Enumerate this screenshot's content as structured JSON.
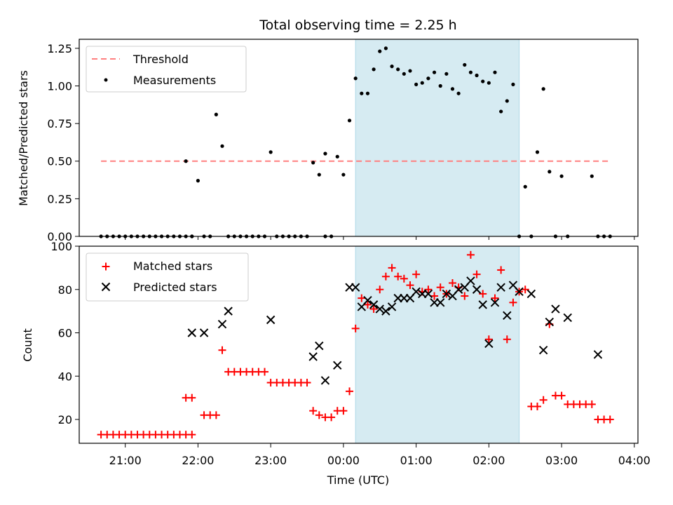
{
  "chart_data": [
    {
      "type": "scatter",
      "title": "Total observing time = 2.25 h",
      "xlabel": "",
      "ylabel": "Matched/Predicted stars",
      "xlim": [
        "20:22",
        "04:03"
      ],
      "ylim": [
        0,
        1.31
      ],
      "yticks": [
        "0.00",
        "0.25",
        "0.50",
        "0.75",
        "1.00",
        "1.25"
      ],
      "shaded_span": {
        "x0": "00:10",
        "x1": "02:25"
      },
      "legend": {
        "placement": "upper-left",
        "entries": [
          "Threshold",
          "Measurements"
        ]
      },
      "threshold": {
        "name": "Threshold",
        "y": 0.5,
        "x0": "20:40",
        "x1": "03:40",
        "color": "#ff7f7f"
      },
      "series": [
        {
          "name": "Measurements",
          "color": "#000000",
          "x": [
            "20:40",
            "20:45",
            "20:50",
            "20:55",
            "21:00",
            "21:05",
            "21:10",
            "21:15",
            "21:20",
            "21:25",
            "21:30",
            "21:35",
            "21:40",
            "21:45",
            "21:50",
            "21:55",
            "21:50",
            "21:55",
            "22:00",
            "22:05",
            "22:10",
            "22:15",
            "22:20",
            "22:25",
            "22:30",
            "22:35",
            "22:40",
            "22:45",
            "22:50",
            "22:55",
            "23:00",
            "23:05",
            "23:10",
            "23:15",
            "23:20",
            "23:25",
            "23:30",
            "23:35",
            "23:40",
            "23:45",
            "23:50",
            "23:55",
            "23:45",
            "00:00",
            "00:05",
            "00:10",
            "00:15",
            "00:20",
            "00:25",
            "00:30",
            "00:35",
            "00:40",
            "00:45",
            "00:50",
            "00:55",
            "01:00",
            "01:05",
            "01:10",
            "01:15",
            "01:20",
            "01:25",
            "01:30",
            "01:35",
            "01:40",
            "01:45",
            "01:50",
            "01:55",
            "02:00",
            "02:05",
            "02:10",
            "02:15",
            "02:20",
            "02:25",
            "02:30",
            "02:35",
            "02:40",
            "02:45",
            "02:50",
            "02:55",
            "03:00",
            "03:05",
            "03:25",
            "03:30",
            "03:35",
            "03:40"
          ],
          "y": [
            0,
            0,
            0,
            0,
            0,
            0,
            0,
            0,
            0,
            0,
            0,
            0,
            0,
            0,
            0,
            0,
            0.5,
            0,
            0.37,
            0,
            0,
            0.81,
            0.6,
            0,
            0,
            0,
            0,
            0,
            0,
            0,
            0.56,
            0,
            0,
            0,
            0,
            0,
            0,
            0.49,
            0.41,
            0.55,
            0,
            0.53,
            0,
            0.41,
            0.77,
            1.05,
            0.95,
            0.95,
            1.11,
            1.23,
            1.25,
            1.13,
            1.11,
            1.08,
            1.1,
            1.01,
            1.02,
            1.05,
            1.09,
            1.0,
            1.08,
            0.98,
            0.95,
            1.14,
            1.09,
            1.07,
            1.03,
            1.02,
            1.09,
            0.83,
            0.9,
            1.01,
            0,
            0.33,
            0,
            0.56,
            0.98,
            0.43,
            0,
            0.4,
            0,
            0.4,
            0,
            0,
            0
          ]
        }
      ]
    },
    {
      "type": "scatter",
      "title": "",
      "xlabel": "Time (UTC)",
      "ylabel": "Count",
      "xlim": [
        "20:22",
        "04:03"
      ],
      "xticks": [
        "21:00",
        "22:00",
        "23:00",
        "00:00",
        "01:00",
        "02:00",
        "03:00",
        "04:00"
      ],
      "ylim": [
        9,
        100
      ],
      "yticks": [
        "20",
        "40",
        "60",
        "80",
        "100"
      ],
      "shaded_span": {
        "x0": "00:10",
        "x1": "02:25"
      },
      "legend": {
        "placement": "upper-left",
        "entries": [
          "Matched stars",
          "Predicted stars"
        ]
      },
      "series": [
        {
          "name": "Matched stars",
          "color": "#ff0000",
          "marker": "plus",
          "x": [
            "20:40",
            "20:45",
            "20:50",
            "20:55",
            "21:00",
            "21:05",
            "21:10",
            "21:15",
            "21:20",
            "21:25",
            "21:30",
            "21:35",
            "21:40",
            "21:45",
            "21:50",
            "21:55",
            "21:50",
            "21:55",
            "22:05",
            "22:10",
            "22:15",
            "22:20",
            "22:25",
            "22:30",
            "22:35",
            "22:40",
            "22:45",
            "22:50",
            "22:55",
            "23:00",
            "23:05",
            "23:10",
            "23:15",
            "23:20",
            "23:25",
            "23:30",
            "23:35",
            "23:40",
            "23:45",
            "23:50",
            "23:55",
            "00:00",
            "00:05",
            "00:10",
            "00:15",
            "00:20",
            "00:25",
            "00:30",
            "00:35",
            "00:40",
            "00:45",
            "00:50",
            "00:55",
            "01:00",
            "01:05",
            "01:10",
            "01:15",
            "01:20",
            "01:25",
            "01:30",
            "01:35",
            "01:40",
            "01:45",
            "01:50",
            "01:55",
            "02:00",
            "02:05",
            "02:10",
            "02:15",
            "02:20",
            "02:25",
            "02:30",
            "02:35",
            "02:40",
            "02:45",
            "02:50",
            "02:55",
            "03:00",
            "03:05",
            "03:10",
            "03:15",
            "03:20",
            "03:25",
            "03:30",
            "03:35",
            "03:40"
          ],
          "y": [
            13,
            13,
            13,
            13,
            13,
            13,
            13,
            13,
            13,
            13,
            13,
            13,
            13,
            13,
            13,
            13,
            30,
            30,
            22,
            22,
            22,
            52,
            42,
            42,
            42,
            42,
            42,
            42,
            42,
            37,
            37,
            37,
            37,
            37,
            37,
            37,
            24,
            22,
            21,
            21,
            24,
            24,
            33,
            62,
            76,
            73,
            71,
            80,
            86,
            90,
            86,
            85,
            82,
            87,
            79,
            80,
            77,
            81,
            78,
            83,
            81,
            77,
            96,
            87,
            78,
            57,
            76,
            89,
            57,
            74,
            79,
            80,
            26,
            26,
            29,
            64,
            31,
            31,
            27,
            27,
            27,
            27,
            27,
            20,
            20,
            20
          ]
        },
        {
          "name": "Predicted stars",
          "color": "#000000",
          "marker": "x",
          "x": [
            "21:55",
            "22:05",
            "22:20",
            "22:25",
            "23:00",
            "23:35",
            "23:40",
            "23:45",
            "23:55",
            "00:05",
            "00:10",
            "00:15",
            "00:20",
            "00:25",
            "00:30",
            "00:35",
            "00:40",
            "00:45",
            "00:50",
            "00:55",
            "01:00",
            "01:05",
            "01:10",
            "01:15",
            "01:20",
            "01:25",
            "01:30",
            "01:35",
            "01:40",
            "01:45",
            "01:50",
            "01:55",
            "02:00",
            "02:05",
            "02:10",
            "02:15",
            "02:20",
            "02:25",
            "02:35",
            "02:45",
            "02:50",
            "02:55",
            "03:05",
            "03:30"
          ],
          "y": [
            60,
            60,
            64,
            70,
            66,
            49,
            54,
            38,
            45,
            81,
            81,
            72,
            75,
            73,
            71,
            70,
            72,
            76,
            76,
            76,
            79,
            78,
            78,
            74,
            74,
            78,
            77,
            80,
            81,
            84,
            80,
            73,
            55,
            74,
            81,
            68,
            82,
            79,
            78,
            52,
            65,
            71,
            67,
            50
          ]
        }
      ]
    }
  ]
}
